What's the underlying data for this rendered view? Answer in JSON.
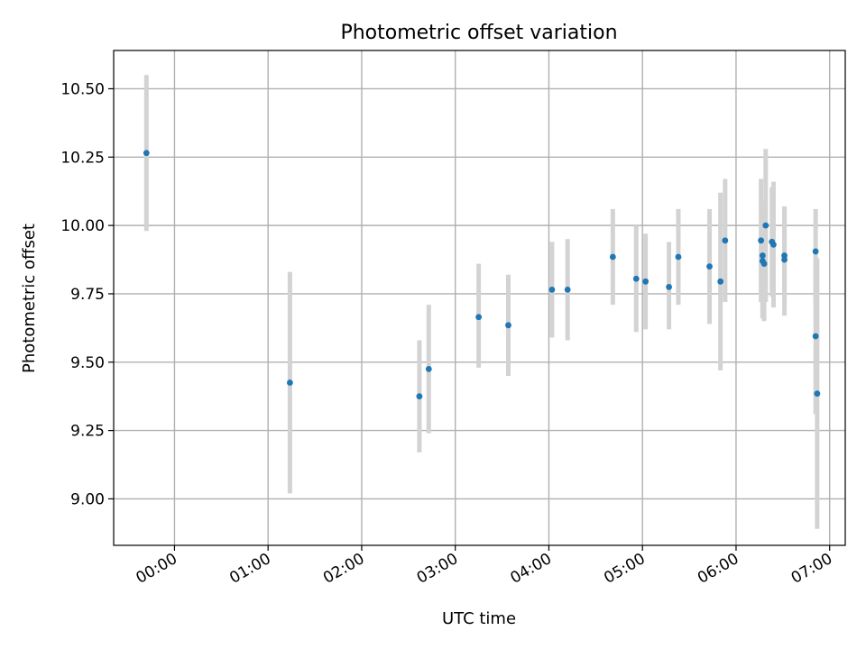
{
  "chart_data": {
    "type": "scatter",
    "title": "Photometric offset variation",
    "xlabel": "UTC time",
    "ylabel": "Photometric offset",
    "x_unit": "UTC time (HH:MM)",
    "xlim": [
      "23:21",
      "07:10"
    ],
    "ylim": [
      8.83,
      10.64
    ],
    "grid": true,
    "x_ticks": [
      "00:00",
      "01:00",
      "02:00",
      "03:00",
      "04:00",
      "05:00",
      "06:00",
      "07:00"
    ],
    "y_ticks": [
      "9.00",
      "9.25",
      "9.50",
      "9.75",
      "10.00",
      "10.25",
      "10.50"
    ],
    "colors": {
      "point": "#1f77b4",
      "errorbar": "#d3d3d3"
    },
    "series": [
      {
        "points": [
          {
            "x": "23:42",
            "y": 10.265,
            "ymin": 9.98,
            "ymax": 10.55
          },
          {
            "x": "01:14",
            "y": 9.425,
            "ymin": 9.02,
            "ymax": 9.83
          },
          {
            "x": "02:37",
            "y": 9.375,
            "ymin": 9.17,
            "ymax": 9.58
          },
          {
            "x": "02:43",
            "y": 9.475,
            "ymin": 9.24,
            "ymax": 9.71
          },
          {
            "x": "03:15",
            "y": 9.665,
            "ymin": 9.48,
            "ymax": 9.86
          },
          {
            "x": "03:34",
            "y": 9.635,
            "ymin": 9.45,
            "ymax": 9.82
          },
          {
            "x": "04:02",
            "y": 9.765,
            "ymin": 9.59,
            "ymax": 9.94
          },
          {
            "x": "04:12",
            "y": 9.765,
            "ymin": 9.58,
            "ymax": 9.95
          },
          {
            "x": "04:41",
            "y": 9.885,
            "ymin": 9.71,
            "ymax": 10.06
          },
          {
            "x": "04:56",
            "y": 9.805,
            "ymin": 9.61,
            "ymax": 10.0
          },
          {
            "x": "05:02",
            "y": 9.795,
            "ymin": 9.62,
            "ymax": 9.97
          },
          {
            "x": "05:17",
            "y": 9.775,
            "ymin": 9.62,
            "ymax": 9.94
          },
          {
            "x": "05:23",
            "y": 9.885,
            "ymin": 9.71,
            "ymax": 10.06
          },
          {
            "x": "05:43",
            "y": 9.85,
            "ymin": 9.64,
            "ymax": 10.06
          },
          {
            "x": "05:50",
            "y": 9.795,
            "ymin": 9.47,
            "ymax": 10.12
          },
          {
            "x": "05:53",
            "y": 9.945,
            "ymin": 9.72,
            "ymax": 10.17
          },
          {
            "x": "06:16",
            "y": 9.945,
            "ymin": 9.72,
            "ymax": 10.17
          },
          {
            "x": "06:17",
            "y": 9.89,
            "ymin": 9.69,
            "ymax": 10.09
          },
          {
            "x": "06:17",
            "y": 9.87,
            "ymin": 9.66,
            "ymax": 10.08
          },
          {
            "x": "06:18",
            "y": 9.86,
            "ymin": 9.65,
            "ymax": 10.07
          },
          {
            "x": "06:19",
            "y": 10.0,
            "ymin": 9.72,
            "ymax": 10.28
          },
          {
            "x": "06:23",
            "y": 9.94,
            "ymin": 9.74,
            "ymax": 10.14
          },
          {
            "x": "06:24",
            "y": 9.93,
            "ymin": 9.7,
            "ymax": 10.16
          },
          {
            "x": "06:31",
            "y": 9.89,
            "ymin": 9.73,
            "ymax": 10.07
          },
          {
            "x": "06:31",
            "y": 9.875,
            "ymin": 9.67,
            "ymax": 10.06
          },
          {
            "x": "06:51",
            "y": 9.905,
            "ymin": 9.71,
            "ymax": 10.06
          },
          {
            "x": "06:51",
            "y": 9.595,
            "ymin": 9.31,
            "ymax": 9.88
          },
          {
            "x": "06:52",
            "y": 9.385,
            "ymin": 8.89,
            "ymax": 9.88
          }
        ]
      }
    ]
  }
}
